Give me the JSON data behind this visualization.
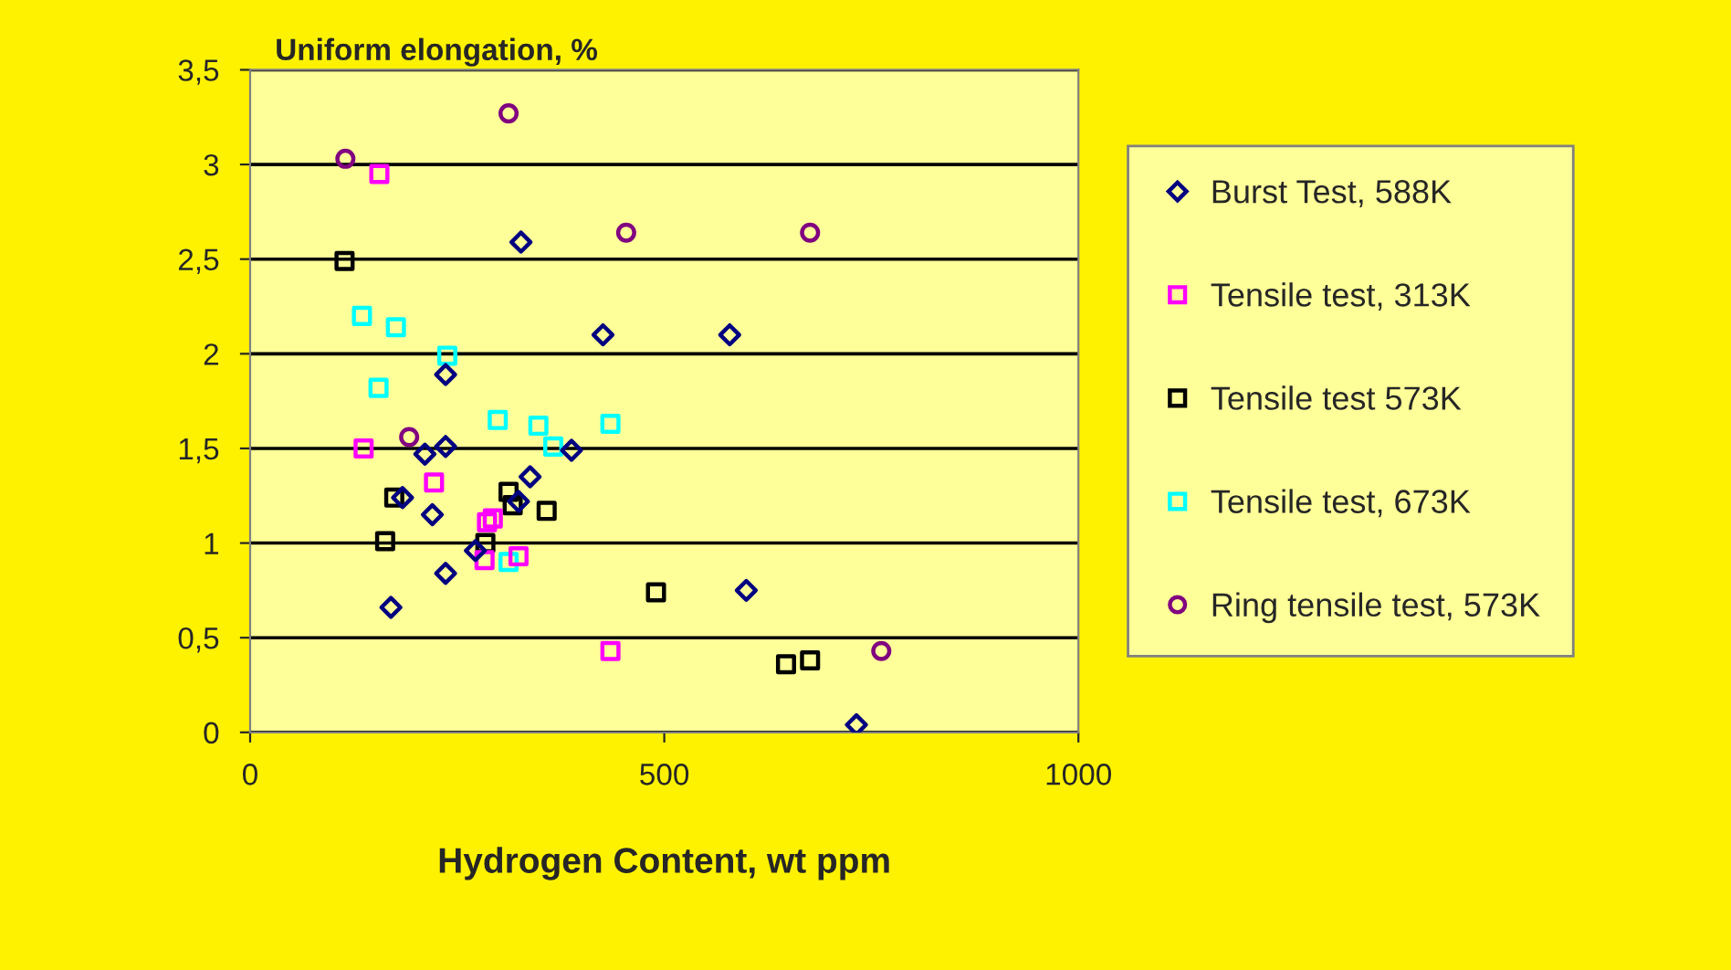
{
  "chart_data": {
    "type": "scatter",
    "xlabel": "Hydrogen Content, wt ppm",
    "ylabel": "Uniform elongation, %",
    "xlim": [
      0,
      1000
    ],
    "xticks": [
      0,
      500,
      1000
    ],
    "ylim": [
      0,
      3.5
    ],
    "yticks": [
      {
        "value": 0,
        "label": "0"
      },
      {
        "value": 0.5,
        "label": "0,5"
      },
      {
        "value": 1,
        "label": "1"
      },
      {
        "value": 1.5,
        "label": "1,5"
      },
      {
        "value": 2,
        "label": "2"
      },
      {
        "value": 2.5,
        "label": "2,5"
      },
      {
        "value": 3,
        "label": "3"
      },
      {
        "value": 3.5,
        "label": "3,5"
      }
    ],
    "grid": "y",
    "legend": "right",
    "series": [
      {
        "name": "Burst Test, 588K",
        "color": "#000080",
        "marker": "diamond",
        "x": [
          327,
          426,
          579,
          236,
          236,
          211,
          388,
          338,
          184,
          324,
          220,
          272,
          236,
          599,
          170,
          732
        ],
        "values": [
          2.59,
          2.1,
          2.1,
          1.89,
          1.51,
          1.47,
          1.49,
          1.35,
          1.24,
          1.22,
          1.15,
          0.96,
          0.84,
          0.75,
          0.66,
          0.04
        ]
      },
      {
        "name": "Tensile test, 313K",
        "color": "#ff00ff",
        "marker": "square",
        "x": [
          156,
          137,
          222,
          293,
          286,
          324,
          283,
          435
        ],
        "values": [
          2.95,
          1.5,
          1.32,
          1.13,
          1.11,
          0.93,
          0.91,
          0.43
        ]
      },
      {
        "name": "Tensile test 573K",
        "color": "#000000",
        "marker": "square",
        "x": [
          114,
          174,
          163,
          284,
          312,
          317,
          358,
          490,
          647,
          676
        ],
        "values": [
          2.49,
          1.24,
          1.01,
          1.0,
          1.27,
          1.2,
          1.17,
          0.74,
          0.36,
          0.38
        ]
      },
      {
        "name": "Tensile test, 673K",
        "color": "#00ffff",
        "marker": "square",
        "x": [
          135,
          176,
          155,
          238,
          299,
          348,
          366,
          435,
          312
        ],
        "values": [
          2.2,
          2.14,
          1.82,
          1.99,
          1.65,
          1.62,
          1.51,
          1.63,
          0.9
        ]
      },
      {
        "name": "Ring tensile test, 573K",
        "color": "#800080",
        "marker": "circle",
        "x": [
          312,
          115,
          454,
          676,
          762,
          192
        ],
        "values": [
          3.27,
          3.03,
          2.64,
          2.64,
          0.43,
          1.56
        ]
      }
    ]
  }
}
